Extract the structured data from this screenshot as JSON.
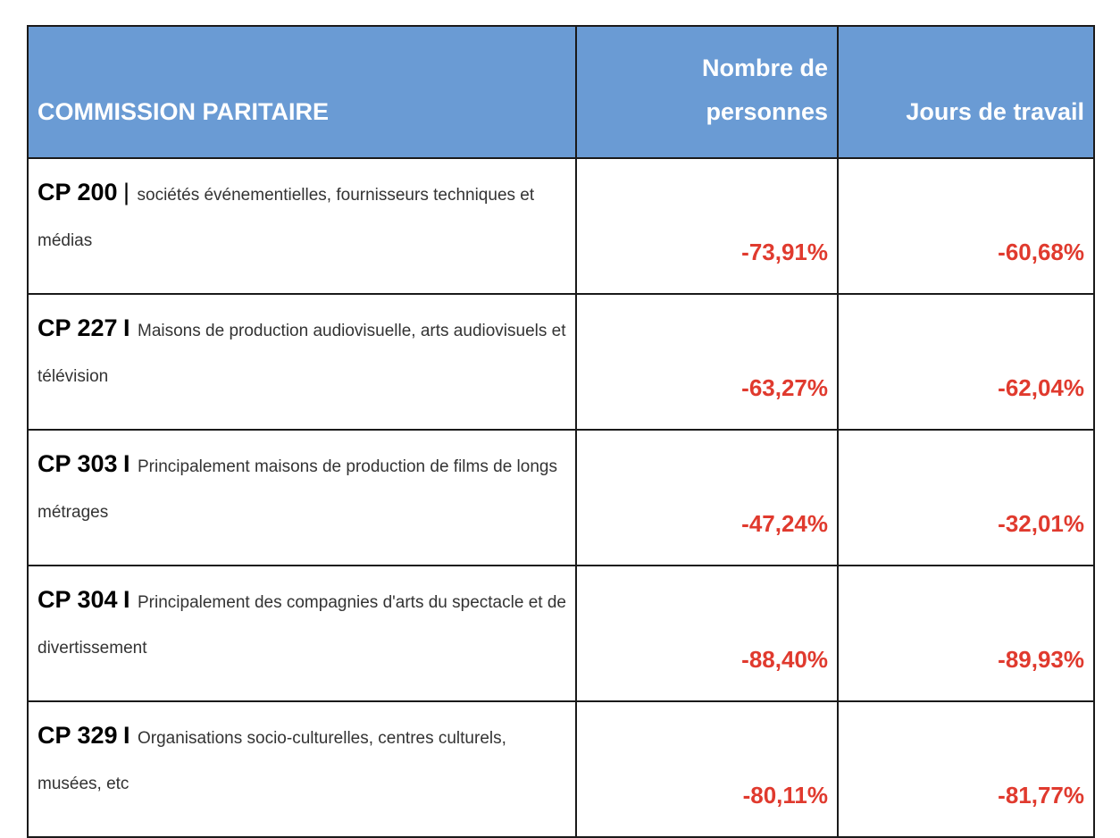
{
  "table": {
    "headers": {
      "commission": "COMMISSION PARITAIRE",
      "persons": "Nombre de personnes",
      "workdays": "Jours de travail"
    },
    "rows": [
      {
        "code": "CP 200",
        "separator": "|",
        "description": "sociétés événementielles, fournisseurs techniques et médias",
        "persons": "-73,91%",
        "workdays": "-60,68%"
      },
      {
        "code": "CP 227",
        "separator": "I",
        "description": "Maisons de production audiovisuelle, arts audiovisuels et télévision",
        "persons": "-63,27%",
        "workdays": "-62,04%"
      },
      {
        "code": "CP 303",
        "separator": "I",
        "description": "Principalement maisons de production de films de longs métrages",
        "persons": "-47,24%",
        "workdays": "-32,01%"
      },
      {
        "code": "CP 304",
        "separator": "I",
        "description": "Principalement des compagnies d'arts du spectacle et de divertissement",
        "persons": "-88,40%",
        "workdays": "-89,93%"
      },
      {
        "code": "CP 329",
        "separator": "I",
        "description": "Organisations socio-culturelles, centres culturels, musées, etc",
        "persons": "-80,11%",
        "workdays": "-81,77%"
      }
    ],
    "colors": {
      "header_background": "#6a9bd4",
      "header_text": "#ffffff",
      "negative_value": "#e03a2e",
      "border": "#1a1a1a"
    }
  }
}
